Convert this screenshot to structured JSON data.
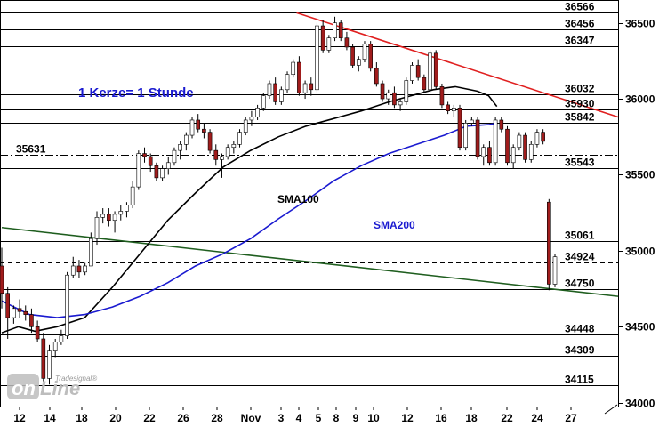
{
  "chart_data": {
    "type": "candlestick",
    "annotation": "1 Kerze= 1 Stunde",
    "watermark": "Tradesignal online",
    "colors": {
      "up": "#ffffff",
      "down": "#a01c1c",
      "sma100": "#000000",
      "sma200": "#1a1ad0",
      "trend_red": "#e02020",
      "trend_green": "#1f5e1f",
      "annotation": "#1a1ad0"
    },
    "y_ticks": [
      34000,
      34500,
      35000,
      35500,
      36000,
      36500
    ],
    "ylim": [
      33975,
      36650
    ],
    "x_tick_labels": [
      "12",
      "14",
      "18",
      "20",
      "22",
      "26",
      "28",
      "Nov",
      "3",
      "4",
      "5",
      "8",
      "9",
      "10",
      "12",
      "16",
      "18",
      "22",
      "24",
      "27"
    ],
    "levels": [
      {
        "value": 36566,
        "label": "36566",
        "style": "solid"
      },
      {
        "value": 36456,
        "label": "36456",
        "style": "solid"
      },
      {
        "value": 36347,
        "label": "36347",
        "style": "solid"
      },
      {
        "value": 36032,
        "label": "36032",
        "style": "solid"
      },
      {
        "value": 35930,
        "label": "35930",
        "style": "solid"
      },
      {
        "value": 35842,
        "label": "35842",
        "style": "solid"
      },
      {
        "value": 35631,
        "label": "35631",
        "style": "dashdot"
      },
      {
        "value": 35543,
        "label": "35543",
        "style": "solid"
      },
      {
        "value": 35061,
        "label": "35061",
        "style": "solid"
      },
      {
        "value": 34924,
        "label": "34924",
        "style": "dashed"
      },
      {
        "value": 34750,
        "label": "34750",
        "style": "solid"
      },
      {
        "value": 34448,
        "label": "34448",
        "style": "solid"
      },
      {
        "value": 34309,
        "label": "34309",
        "style": "solid"
      },
      {
        "value": 34115,
        "label": "34115",
        "style": "solid"
      }
    ],
    "series": [
      {
        "name": "SMA100",
        "values": [
          [
            0.0,
            34460
          ],
          [
            0.03,
            34500
          ],
          [
            0.06,
            34470
          ],
          [
            0.1,
            34500
          ],
          [
            0.15,
            34560
          ],
          [
            0.2,
            34760
          ],
          [
            0.25,
            34980
          ],
          [
            0.3,
            35200
          ],
          [
            0.35,
            35380
          ],
          [
            0.4,
            35550
          ],
          [
            0.45,
            35660
          ],
          [
            0.5,
            35750
          ],
          [
            0.55,
            35820
          ],
          [
            0.6,
            35870
          ],
          [
            0.65,
            35920
          ],
          [
            0.7,
            35980
          ],
          [
            0.74,
            36020
          ],
          [
            0.78,
            36060
          ],
          [
            0.82,
            36080
          ],
          [
            0.86,
            36050
          ],
          [
            0.88,
            36020
          ],
          [
            0.895,
            35950
          ]
        ]
      },
      {
        "name": "SMA200",
        "values": [
          [
            0.0,
            34670
          ],
          [
            0.05,
            34580
          ],
          [
            0.1,
            34560
          ],
          [
            0.15,
            34580
          ],
          [
            0.2,
            34630
          ],
          [
            0.25,
            34700
          ],
          [
            0.3,
            34790
          ],
          [
            0.35,
            34900
          ],
          [
            0.4,
            34980
          ],
          [
            0.45,
            35080
          ],
          [
            0.5,
            35210
          ],
          [
            0.55,
            35330
          ],
          [
            0.6,
            35460
          ],
          [
            0.65,
            35560
          ],
          [
            0.7,
            35640
          ],
          [
            0.75,
            35700
          ],
          [
            0.8,
            35760
          ],
          [
            0.84,
            35820
          ],
          [
            0.88,
            35830
          ],
          [
            0.895,
            35840
          ]
        ]
      }
    ],
    "trendlines": [
      {
        "from": [
          0.533,
          36566
        ],
        "to": [
          1.0,
          35880
        ],
        "color": "red"
      },
      {
        "from": [
          0.0,
          35153
        ],
        "to": [
          1.0,
          34700
        ],
        "color": "green"
      }
    ],
    "candles": [
      [
        34900,
        35020,
        34620,
        34720
      ],
      [
        34720,
        34760,
        34420,
        34560
      ],
      [
        34560,
        34640,
        34520,
        34620
      ],
      [
        34620,
        34680,
        34560,
        34600
      ],
      [
        34600,
        34640,
        34540,
        34580
      ],
      [
        34580,
        34620,
        34460,
        34500
      ],
      [
        34500,
        34540,
        34400,
        34420
      ],
      [
        34420,
        34460,
        34140,
        34160
      ],
      [
        34160,
        34380,
        34120,
        34340
      ],
      [
        34340,
        34420,
        34300,
        34400
      ],
      [
        34400,
        34480,
        34380,
        34440
      ],
      [
        34440,
        34860,
        34420,
        34840
      ],
      [
        34840,
        34960,
        34820,
        34900
      ],
      [
        34900,
        34940,
        34820,
        34860
      ],
      [
        34860,
        34920,
        34840,
        34900
      ],
      [
        34900,
        35120,
        34900,
        35080
      ],
      [
        35080,
        35260,
        35040,
        35220
      ],
      [
        35220,
        35280,
        35180,
        35240
      ],
      [
        35240,
        35280,
        35160,
        35200
      ],
      [
        35200,
        35260,
        35120,
        35240
      ],
      [
        35240,
        35300,
        35200,
        35260
      ],
      [
        35260,
        35320,
        35220,
        35300
      ],
      [
        35300,
        35460,
        35280,
        35420
      ],
      [
        35420,
        35660,
        35400,
        35640
      ],
      [
        35640,
        35680,
        35580,
        35620
      ],
      [
        35620,
        35640,
        35520,
        35560
      ],
      [
        35560,
        35580,
        35460,
        35480
      ],
      [
        35480,
        35560,
        35460,
        35540
      ],
      [
        35540,
        35620,
        35500,
        35580
      ],
      [
        35580,
        35680,
        35560,
        35660
      ],
      [
        35660,
        35720,
        35600,
        35700
      ],
      [
        35700,
        35780,
        35660,
        35760
      ],
      [
        35760,
        35880,
        35740,
        35860
      ],
      [
        35860,
        35900,
        35780,
        35800
      ],
      [
        35800,
        35840,
        35740,
        35780
      ],
      [
        35780,
        35800,
        35640,
        35660
      ],
      [
        35660,
        35700,
        35560,
        35600
      ],
      [
        35600,
        35640,
        35480,
        35620
      ],
      [
        35620,
        35700,
        35600,
        35680
      ],
      [
        35680,
        35720,
        35640,
        35700
      ],
      [
        35700,
        35800,
        35680,
        35780
      ],
      [
        35780,
        35880,
        35760,
        35860
      ],
      [
        35860,
        35920,
        35820,
        35880
      ],
      [
        35880,
        35960,
        35860,
        35940
      ],
      [
        35940,
        36040,
        35920,
        36020
      ],
      [
        36020,
        36120,
        36000,
        36100
      ],
      [
        36100,
        36140,
        35960,
        35980
      ],
      [
        35980,
        36080,
        35960,
        36060
      ],
      [
        36060,
        36180,
        36040,
        36160
      ],
      [
        36160,
        36260,
        36140,
        36240
      ],
      [
        36240,
        36280,
        36020,
        36040
      ],
      [
        36040,
        36120,
        36000,
        36100
      ],
      [
        36100,
        36140,
        36020,
        36060
      ],
      [
        36060,
        36500,
        36040,
        36480
      ],
      [
        36480,
        36520,
        36300,
        36320
      ],
      [
        36320,
        36420,
        36300,
        36400
      ],
      [
        36400,
        36540,
        36380,
        36500
      ],
      [
        36500,
        36520,
        36380,
        36400
      ],
      [
        36400,
        36440,
        36320,
        36340
      ],
      [
        36340,
        36360,
        36200,
        36220
      ],
      [
        36220,
        36280,
        36180,
        36260
      ],
      [
        36260,
        36380,
        36240,
        36360
      ],
      [
        36360,
        36380,
        36180,
        36200
      ],
      [
        36200,
        36240,
        36080,
        36100
      ],
      [
        36100,
        36120,
        35980,
        36000
      ],
      [
        36000,
        36060,
        35960,
        36040
      ],
      [
        36040,
        36080,
        35940,
        35960
      ],
      [
        35960,
        36000,
        35920,
        35980
      ],
      [
        35980,
        36140,
        35960,
        36120
      ],
      [
        36120,
        36240,
        36100,
        36220
      ],
      [
        36220,
        36260,
        36120,
        36140
      ],
      [
        36140,
        36160,
        36040,
        36060
      ],
      [
        36060,
        36320,
        36040,
        36300
      ],
      [
        36300,
        36320,
        36060,
        36080
      ],
      [
        36080,
        36100,
        35940,
        35960
      ],
      [
        35960,
        35980,
        35900,
        35920
      ],
      [
        35920,
        35960,
        35880,
        35940
      ],
      [
        35940,
        35960,
        35660,
        35680
      ],
      [
        35680,
        35860,
        35660,
        35840
      ],
      [
        35840,
        35880,
        35820,
        35860
      ],
      [
        35860,
        35880,
        35600,
        35620
      ],
      [
        35620,
        35700,
        35560,
        35680
      ],
      [
        35680,
        35720,
        35560,
        35580
      ],
      [
        35580,
        35880,
        35560,
        35860
      ],
      [
        35860,
        35880,
        35780,
        35800
      ],
      [
        35800,
        35820,
        35560,
        35580
      ],
      [
        35580,
        35700,
        35540,
        35680
      ],
      [
        35680,
        35780,
        35660,
        35760
      ],
      [
        35760,
        35780,
        35580,
        35600
      ],
      [
        35600,
        35720,
        35580,
        35700
      ],
      [
        35700,
        35800,
        35680,
        35780
      ],
      [
        35780,
        35800,
        35700,
        35720
      ],
      [
        35320,
        35340,
        34740,
        34780
      ],
      [
        34780,
        34980,
        34760,
        34960
      ]
    ]
  }
}
